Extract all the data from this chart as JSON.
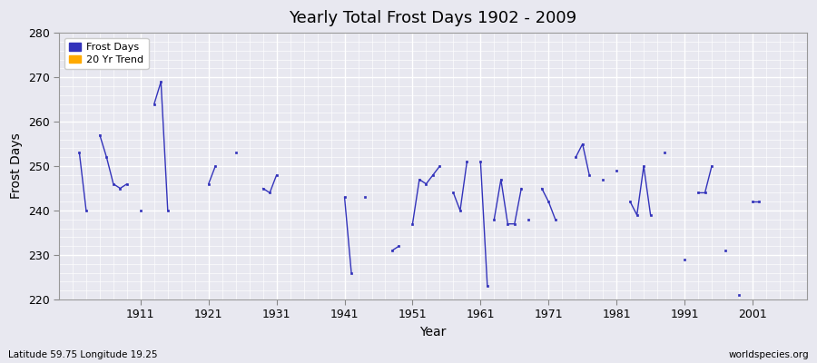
{
  "title": "Yearly Total Frost Days 1902 - 2009",
  "xlabel": "Year",
  "ylabel": "Frost Days",
  "lat_lon_label": "Latitude 59.75 Longitude 19.25",
  "watermark": "worldspecies.org",
  "ylim": [
    220,
    280
  ],
  "xlim": [
    1899,
    2009
  ],
  "yticks": [
    220,
    230,
    240,
    250,
    260,
    270,
    280
  ],
  "xticks": [
    1911,
    1921,
    1931,
    1941,
    1951,
    1961,
    1971,
    1981,
    1991,
    2001
  ],
  "line_color": "#3333bb",
  "trend_color": "#ffaa00",
  "plot_bg_color": "#e8e8f0",
  "fig_bg_color": "#e8e8f0",
  "segments": [
    [
      [
        1902,
        253
      ],
      [
        1903,
        240
      ]
    ],
    [
      [
        1905,
        257
      ],
      [
        1906,
        252
      ],
      [
        1907,
        246
      ],
      [
        1908,
        245
      ],
      [
        1909,
        246
      ]
    ],
    [
      [
        1911,
        240
      ]
    ],
    [
      [
        1913,
        264
      ],
      [
        1914,
        269
      ],
      [
        1915,
        240
      ]
    ],
    [
      [
        1921,
        246
      ],
      [
        1922,
        250
      ]
    ],
    [
      [
        1925,
        253
      ]
    ],
    [
      [
        1929,
        245
      ],
      [
        1930,
        244
      ],
      [
        1931,
        248
      ]
    ],
    [
      [
        1941,
        243
      ],
      [
        1942,
        226
      ]
    ],
    [
      [
        1944,
        243
      ]
    ],
    [
      [
        1948,
        231
      ],
      [
        1949,
        232
      ]
    ],
    [
      [
        1951,
        237
      ],
      [
        1952,
        247
      ],
      [
        1953,
        246
      ],
      [
        1954,
        248
      ],
      [
        1955,
        250
      ]
    ],
    [
      [
        1957,
        244
      ],
      [
        1958,
        240
      ],
      [
        1959,
        251
      ]
    ],
    [
      [
        1961,
        251
      ],
      [
        1962,
        223
      ]
    ],
    [
      [
        1963,
        238
      ],
      [
        1964,
        247
      ],
      [
        1965,
        237
      ],
      [
        1966,
        237
      ],
      [
        1967,
        245
      ]
    ],
    [
      [
        1968,
        238
      ]
    ],
    [
      [
        1970,
        245
      ],
      [
        1971,
        242
      ],
      [
        1972,
        238
      ]
    ],
    [
      [
        1975,
        252
      ],
      [
        1976,
        255
      ],
      [
        1977,
        248
      ]
    ],
    [
      [
        1979,
        247
      ]
    ],
    [
      [
        1981,
        249
      ]
    ],
    [
      [
        1983,
        242
      ],
      [
        1984,
        239
      ],
      [
        1985,
        250
      ],
      [
        1986,
        239
      ]
    ],
    [
      [
        1988,
        253
      ]
    ],
    [
      [
        1991,
        229
      ]
    ],
    [
      [
        1993,
        244
      ],
      [
        1994,
        244
      ],
      [
        1995,
        250
      ]
    ],
    [
      [
        1997,
        231
      ]
    ],
    [
      [
        1999,
        221
      ]
    ],
    [
      [
        2001,
        242
      ],
      [
        2002,
        242
      ]
    ]
  ]
}
